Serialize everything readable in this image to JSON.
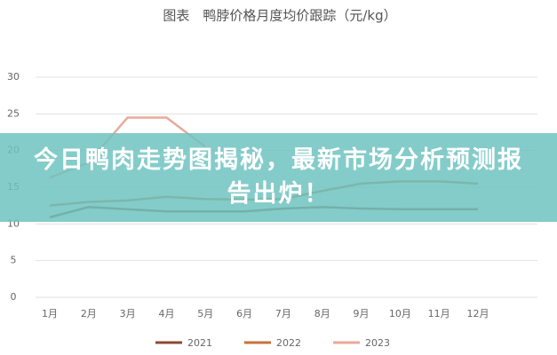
{
  "chart_data": {
    "type": "line",
    "title": "图表　鸭脖价格月度均价跟踪（元/kg）",
    "categories": [
      "1月",
      "2月",
      "3月",
      "4月",
      "5月",
      "6月",
      "7月",
      "8月",
      "9月",
      "10月",
      "11月",
      "12月"
    ],
    "series": [
      {
        "name": "2021",
        "color": "#8b4a2f",
        "values": [
          10.9,
          12.3,
          12,
          11.7,
          11.7,
          11.7,
          12.1,
          12.3,
          12.1,
          12,
          12,
          12
        ]
      },
      {
        "name": "2022",
        "color": "#c8723c",
        "values": [
          12.5,
          13,
          13.2,
          13.7,
          13.4,
          13.3,
          13.4,
          14.5,
          15.5,
          15.8,
          15.8,
          15.5
        ]
      },
      {
        "name": "2023",
        "color": "#e8aa9a",
        "values": [
          16.3,
          18.4,
          24.5,
          24.5,
          20.5,
          null,
          null,
          null,
          null,
          null,
          null,
          null
        ]
      }
    ],
    "ylim": [
      0,
      30
    ],
    "yticks": [
      0,
      5,
      10,
      15,
      20,
      25,
      30
    ],
    "grid": true
  },
  "banner": {
    "text": "今日鸭肉走势图揭秘，最新市场分析预测报告出炉！"
  }
}
